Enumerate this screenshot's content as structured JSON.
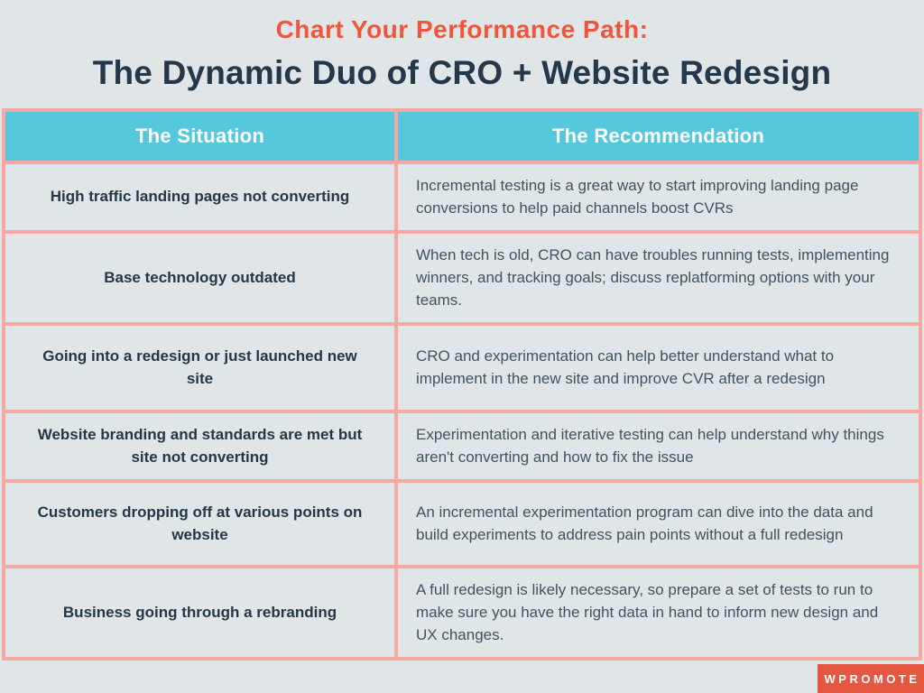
{
  "header": {
    "subtitle": "Chart Your Performance Path:",
    "title": "The Dynamic Duo of CRO + Website Redesign"
  },
  "table": {
    "columns": [
      "The Situation",
      "The Recommendation"
    ],
    "rows": [
      {
        "situation": "High traffic landing pages not converting",
        "recommendation": "Incremental testing is a great way to start improving landing page conversions to help paid channels boost CVRs"
      },
      {
        "situation": "Base technology outdated",
        "recommendation": "When tech is old, CRO can have troubles running tests, implementing winners, and tracking goals; discuss replatforming options with your teams."
      },
      {
        "situation": "Going into a redesign or just launched new site",
        "recommendation": "CRO and experimentation can help better understand what to implement in the new site and improve CVR after a redesign"
      },
      {
        "situation": "Website branding and standards are met but site not converting",
        "recommendation": "Experimentation and iterative testing can help understand why things aren't converting and how to fix the issue"
      },
      {
        "situation": "Customers dropping off at various points on website",
        "recommendation": "An incremental experimentation program can dive into the data and build experiments to address pain points without a full redesign"
      },
      {
        "situation": "Business going through a rebranding",
        "recommendation": "A full redesign is likely necessary, so prepare a set of tests to run to make sure you have the right data in hand to inform new design and UX changes."
      }
    ]
  },
  "footer": {
    "logo_text": "WPROMOTE"
  },
  "colors": {
    "background": "#e0e6e7",
    "table_header": "#55c8de",
    "table_border": "#f6a9a0",
    "subtitle_accent": "#f2543c",
    "title_text": "#24384a",
    "logo_background": "#e65742"
  }
}
